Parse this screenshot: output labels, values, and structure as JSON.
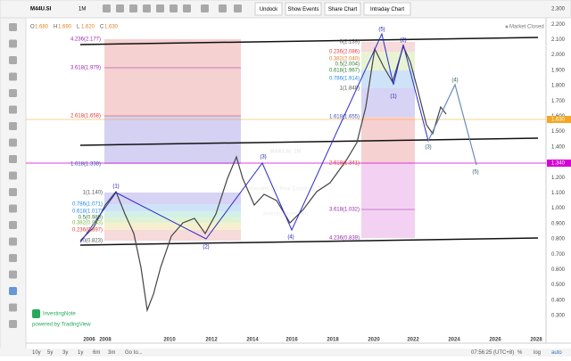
{
  "toolbar": {
    "symbol": "M44U.SI",
    "interval": "1M",
    "buttons": [
      "Undock",
      "Show Events",
      "Share Chart",
      "Intraday Chart"
    ]
  },
  "legend": {
    "ohlc": [
      [
        "O",
        "1.680"
      ],
      [
        "H",
        "1.690"
      ],
      [
        "L",
        "1.620"
      ],
      [
        "C",
        "1.630"
      ]
    ],
    "status": "Market Closed"
  },
  "watermark": {
    "symbol": "M44U.SI, 1M",
    "name": "Manulife US Real Estate Inv Tr",
    "site": "InvestingNote.com"
  },
  "price_axis": [
    "2.300",
    "2.200",
    "2.100",
    "2.000",
    "1.900",
    "1.800",
    "1.700",
    "1.600",
    "1.500",
    "1.400",
    "1.300",
    "1.200",
    "1.100",
    "1.000",
    "0.900",
    "0.800",
    "0.700",
    "0.600",
    "0.500",
    "0.400",
    "0.300"
  ],
  "price_tags": {
    "last": "1.630",
    "level": "1.340"
  },
  "time_axis": [
    "2006",
    "2008",
    "2010",
    "2012",
    "2014",
    "2016",
    "2018",
    "2020",
    "2022",
    "2024",
    "2026",
    "2028"
  ],
  "fib_left_ext": [
    "4.236(2.177)",
    "3.618(1.979)",
    "2.618(1.658)",
    "1.618(1.338)"
  ],
  "fib_left_ret": [
    "1(1.140)",
    "0.786(1.071)",
    "0.618(1.017)",
    "0.5(0.980)",
    "0.382(0.943)",
    "0.236(0.897)",
    "0(0.823)"
  ],
  "fib_right_ret": [
    "0(2.139)",
    "0.236(2.086)",
    "0.382(2.040)",
    "0.5(2.004)",
    "0.618(1.967)",
    "0.786(1.914)",
    "1(1.848)"
  ],
  "fib_right_ext": [
    "1.618(1.655)",
    "2.618(1.341)",
    "3.618(1.032)",
    "4.236(0.839)"
  ],
  "waves": [
    "(1)",
    "(2)",
    "(3)",
    "(4)",
    "(5)",
    "(2)",
    "(1)",
    "(3)",
    "(4)",
    "(5)"
  ],
  "logo": {
    "name": "InvestingNote",
    "powered": "powered by TradingView"
  },
  "footer": {
    "ranges": [
      "10y",
      "5y",
      "3y",
      "1y",
      "6m",
      "3m"
    ],
    "goto": "Go to...",
    "clock": "07:56:25 (UTC+8)",
    "options": [
      "%",
      "log",
      "auto"
    ]
  }
}
